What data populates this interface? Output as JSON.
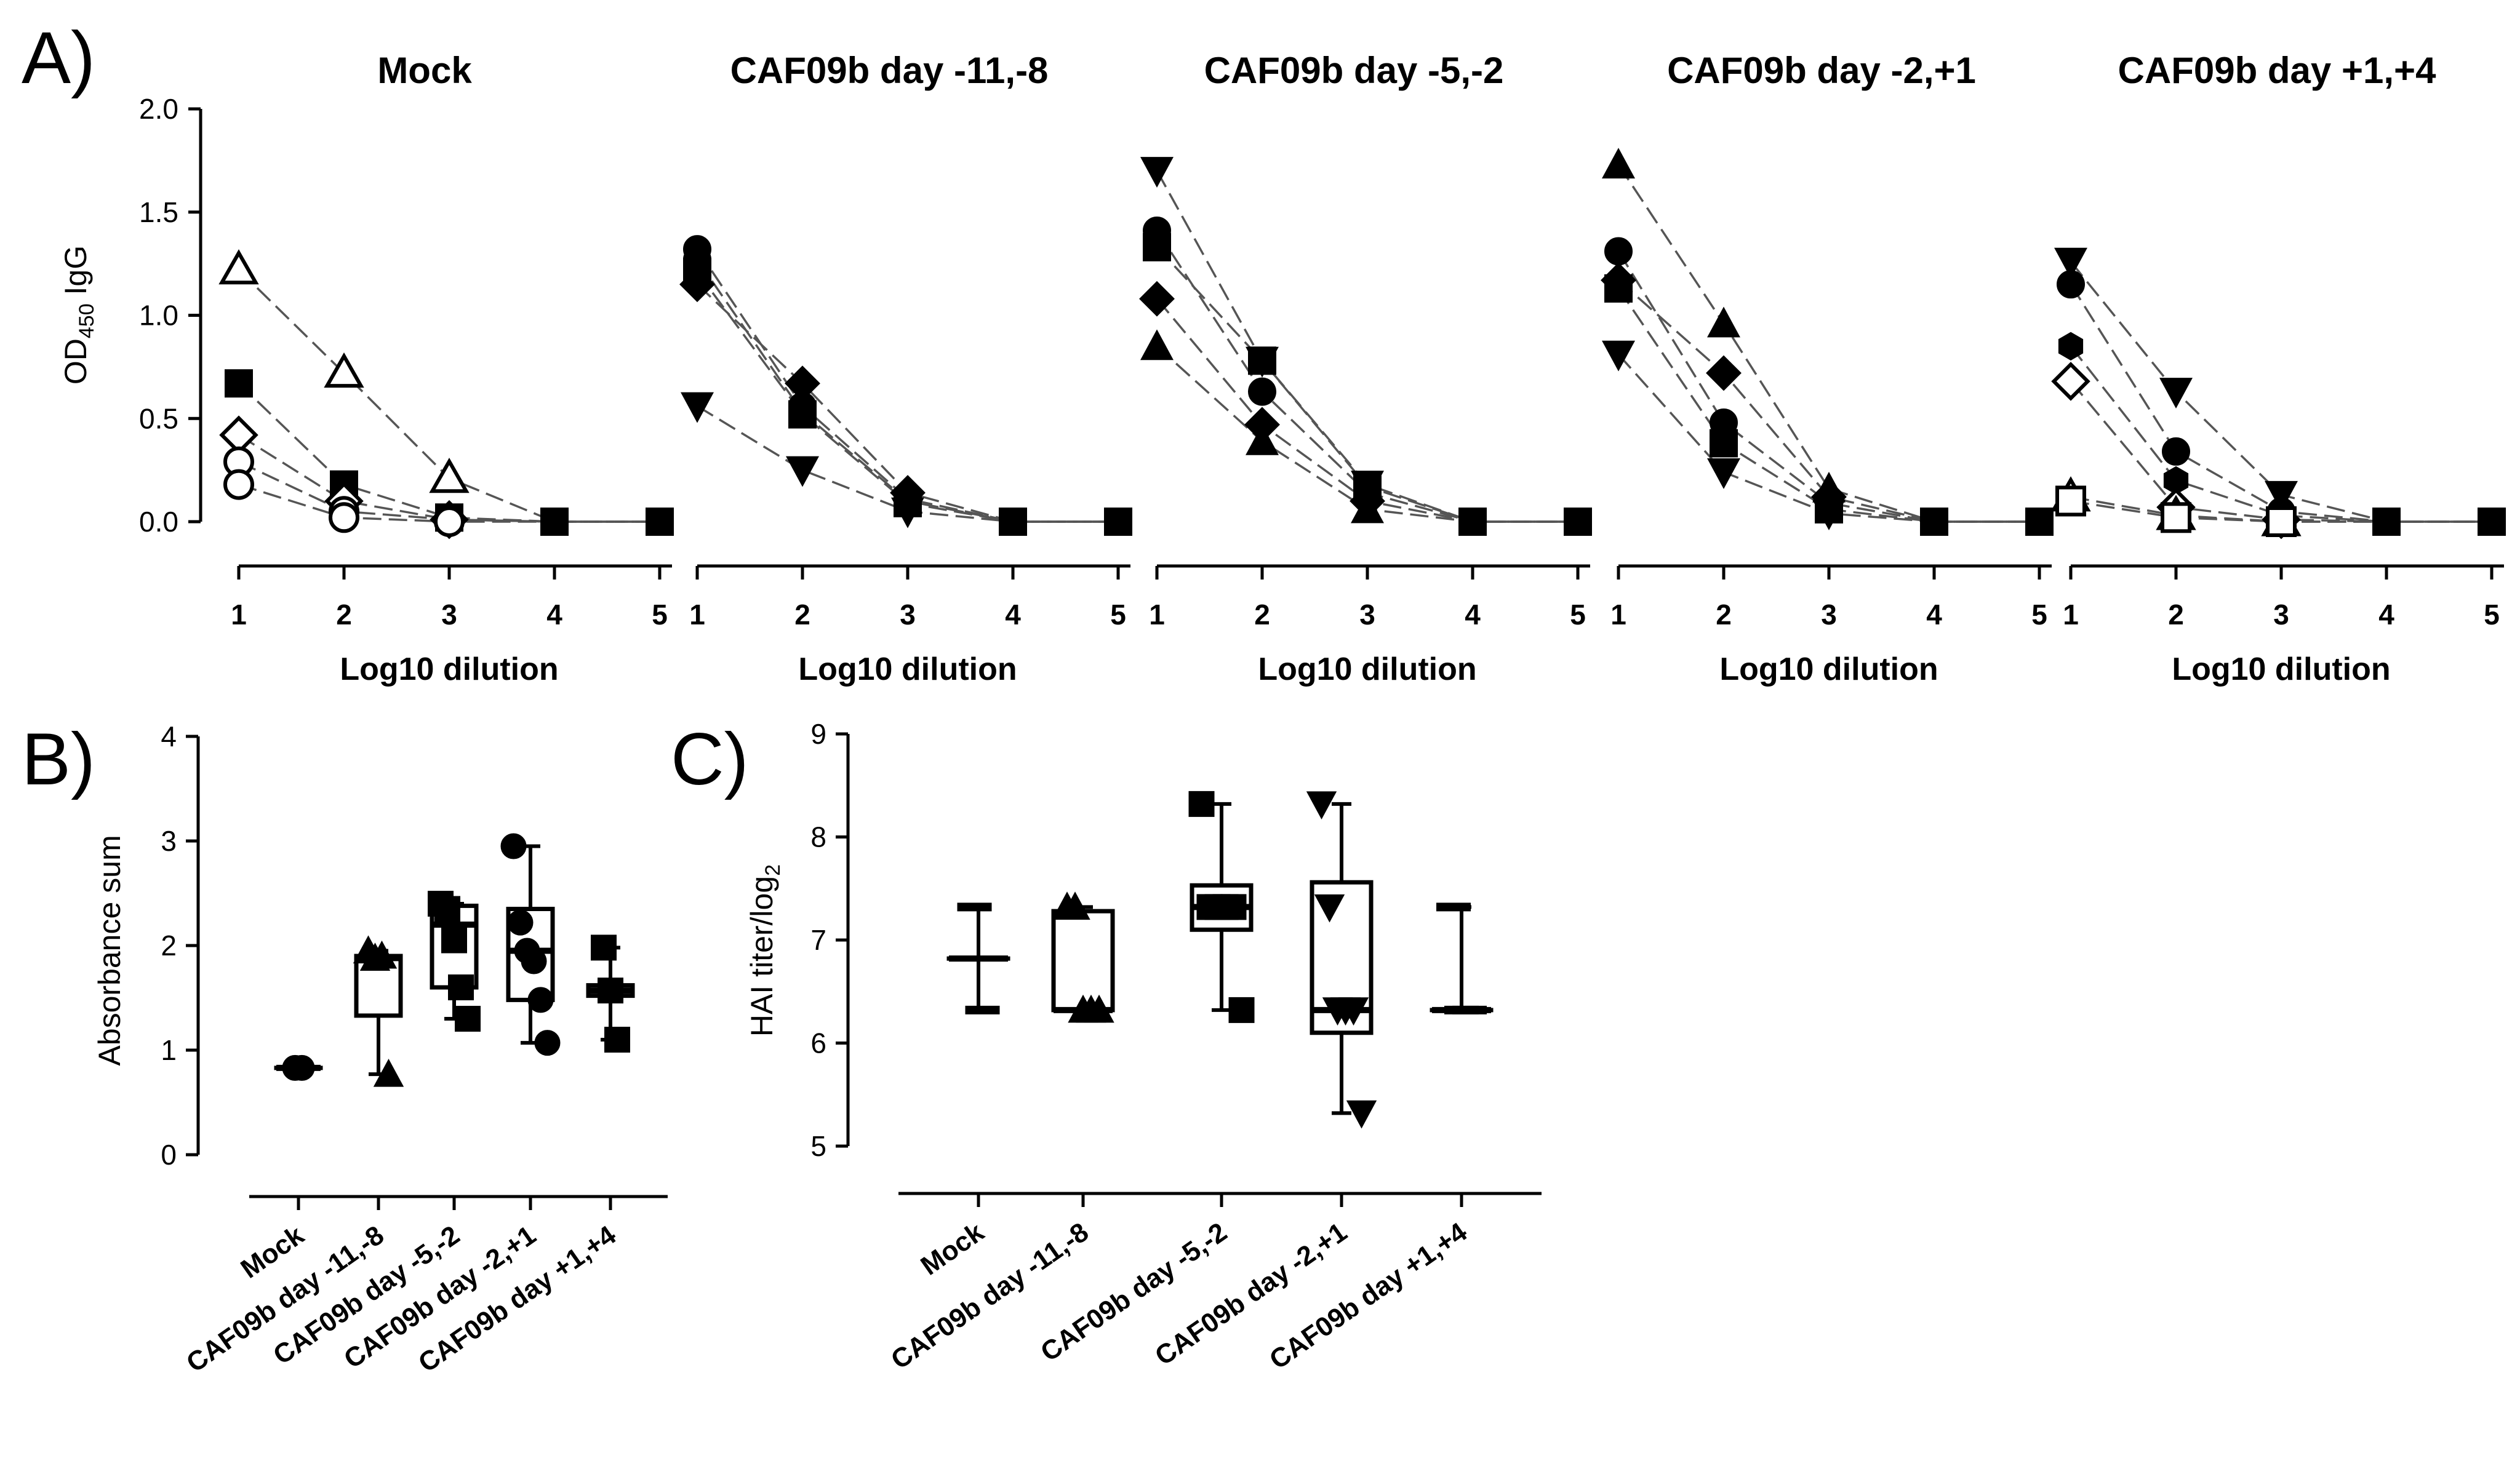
{
  "figure": {
    "panel_labels": [
      "A)",
      "B)",
      "C)"
    ]
  },
  "style": {
    "ink": "#000000",
    "background": "#ffffff"
  },
  "chart_data": [
    {
      "panel": "A",
      "type": "line",
      "ylabel_main": "OD",
      "ylabel_sub": "450",
      "ylabel_tail": " IgG",
      "xlabel": "Log10 dilution",
      "ylim": [
        0,
        2.0
      ],
      "yticks": [
        "0.0",
        "0.5",
        "1.0",
        "1.5",
        "2.0"
      ],
      "xticks": [
        "1",
        "2",
        "3",
        "4",
        "5"
      ],
      "subplots": [
        {
          "title": "Mock",
          "series": [
            {
              "marker": "triangle-open",
              "values": [
                1.22,
                0.72,
                0.21,
                0.0,
                0.0
              ]
            },
            {
              "marker": "square",
              "values": [
                0.67,
                0.18,
                0.02,
                0.0,
                0.0
              ]
            },
            {
              "marker": "diamond-open",
              "values": [
                0.42,
                0.1,
                0.01,
                0.0,
                0.0
              ]
            },
            {
              "marker": "circle-open",
              "values": [
                0.29,
                0.05,
                0.01,
                0.0,
                0.0
              ]
            },
            {
              "marker": "circle-open",
              "values": [
                0.18,
                0.02,
                0.0,
                0.0,
                0.0
              ]
            }
          ]
        },
        {
          "title": "CAF09b day -11,-8",
          "series": [
            {
              "marker": "circle",
              "values": [
                1.32,
                0.56,
                0.11,
                0.0,
                0.0
              ]
            },
            {
              "marker": "circle",
              "values": [
                1.27,
                0.53,
                0.1,
                0.0,
                0.0
              ]
            },
            {
              "marker": "square",
              "values": [
                1.21,
                0.52,
                0.09,
                0.0,
                0.0
              ]
            },
            {
              "marker": "diamond",
              "values": [
                1.15,
                0.67,
                0.14,
                0.0,
                0.0
              ]
            },
            {
              "marker": "triangle-down",
              "values": [
                0.56,
                0.25,
                0.05,
                0.0,
                0.0
              ]
            }
          ]
        },
        {
          "title": "CAF09b day -5,-2",
          "series": [
            {
              "marker": "triangle-down",
              "values": [
                1.7,
                0.78,
                0.18,
                0.0,
                0.0
              ]
            },
            {
              "marker": "circle",
              "values": [
                1.41,
                0.63,
                0.14,
                0.0,
                0.0
              ]
            },
            {
              "marker": "square",
              "values": [
                1.33,
                0.78,
                0.17,
                0.0,
                0.0
              ]
            },
            {
              "marker": "diamond",
              "values": [
                1.08,
                0.47,
                0.1,
                0.0,
                0.0
              ]
            },
            {
              "marker": "triangle-up",
              "values": [
                0.85,
                0.39,
                0.06,
                0.0,
                0.0
              ]
            }
          ]
        },
        {
          "title": "CAF09b day -2,+1",
          "series": [
            {
              "marker": "triangle-up",
              "values": [
                1.73,
                0.96,
                0.16,
                0.0,
                0.0
              ]
            },
            {
              "marker": "circle",
              "values": [
                1.31,
                0.48,
                0.09,
                0.0,
                0.0
              ]
            },
            {
              "marker": "square",
              "values": [
                1.13,
                0.38,
                0.06,
                0.0,
                0.0
              ]
            },
            {
              "marker": "diamond",
              "values": [
                1.17,
                0.72,
                0.12,
                0.0,
                0.0
              ]
            },
            {
              "marker": "triangle-down",
              "values": [
                0.81,
                0.24,
                0.04,
                0.0,
                0.0
              ]
            }
          ]
        },
        {
          "title": "CAF09b day +1,+4",
          "series": [
            {
              "marker": "triangle-down",
              "values": [
                1.26,
                0.63,
                0.13,
                0.0,
                0.0
              ]
            },
            {
              "marker": "circle",
              "values": [
                1.15,
                0.34,
                0.05,
                0.0,
                0.0
              ]
            },
            {
              "marker": "hexagon",
              "values": [
                0.85,
                0.2,
                0.03,
                0.0,
                0.0
              ]
            },
            {
              "marker": "diamond-open",
              "values": [
                0.68,
                0.07,
                0.01,
                0.0,
                0.0
              ]
            },
            {
              "marker": "triangle-open",
              "values": [
                0.12,
                0.03,
                0.0,
                0.0,
                0.0
              ]
            },
            {
              "marker": "square-open",
              "values": [
                0.1,
                0.02,
                0.0,
                0.0,
                0.0
              ]
            }
          ]
        }
      ]
    },
    {
      "panel": "B",
      "type": "box",
      "ylabel": "Absorbance sum",
      "ylim": [
        0,
        4
      ],
      "yticks": [
        "0",
        "1",
        "2",
        "3",
        "4"
      ],
      "categories": [
        "Mock",
        "CAF09b day -11,-8",
        "CAF09b day -5,-2",
        "CAF09b day -2,+1",
        "CAF09b day +1,+4"
      ],
      "boxes": [
        {
          "min": 0.83,
          "q1": 0.83,
          "median": 0.83,
          "q3": 0.83,
          "max": 0.83
        },
        {
          "min": 0.77,
          "q1": 1.33,
          "median": 1.88,
          "q3": 1.9,
          "max": 1.95
        },
        {
          "min": 1.3,
          "q1": 1.6,
          "median": 2.2,
          "q3": 2.38,
          "max": 2.4
        },
        {
          "min": 1.07,
          "q1": 1.48,
          "median": 1.95,
          "q3": 2.35,
          "max": 2.95
        },
        {
          "min": 1.1,
          "q1": 1.52,
          "median": 1.57,
          "q3": 1.62,
          "max": 1.98
        }
      ],
      "points": [
        {
          "marker": "circle",
          "values": [
            0.83,
            0.83
          ]
        },
        {
          "marker": "triangle-up",
          "values": [
            1.95,
            1.88,
            1.9,
            0.77
          ]
        },
        {
          "marker": "square",
          "values": [
            2.4,
            2.35,
            2.05,
            1.6,
            1.3
          ]
        },
        {
          "marker": "circle",
          "values": [
            2.95,
            2.22,
            1.95,
            1.85,
            1.48,
            1.07
          ]
        },
        {
          "marker": "square",
          "values": [
            1.98,
            1.57,
            1.1
          ]
        }
      ]
    },
    {
      "panel": "C",
      "type": "box",
      "ylabel_main": "HAI titer/log",
      "ylabel_sub": "2",
      "ylim": [
        5,
        9
      ],
      "yticks": [
        "5",
        "6",
        "7",
        "8",
        "9"
      ],
      "categories": [
        "Mock",
        "CAF09b day -11,-8",
        "CAF09b day -5,-2",
        "CAF09b day -2,+1",
        "CAF09b day +1,+4"
      ],
      "boxes": [
        {
          "min": 6.32,
          "q1": 6.82,
          "median": 6.82,
          "q3": 6.82,
          "max": 7.32
        },
        {
          "min": 6.32,
          "q1": 6.32,
          "median": 6.32,
          "q3": 7.28,
          "max": 7.32
        },
        {
          "min": 6.32,
          "q1": 7.1,
          "median": 7.32,
          "q3": 7.53,
          "max": 8.32
        },
        {
          "min": 5.32,
          "q1": 6.1,
          "median": 6.32,
          "q3": 7.56,
          "max": 8.32
        },
        {
          "min": 6.32,
          "q1": 6.32,
          "median": 6.32,
          "q3": 6.32,
          "max": 7.32
        }
      ],
      "points": [
        {
          "marker": "hline",
          "values": [
            7.32,
            6.32
          ]
        },
        {
          "marker": "triangle-up",
          "values": [
            7.32,
            7.32,
            6.32,
            6.32,
            6.32
          ]
        },
        {
          "marker": "square",
          "values": [
            8.32,
            7.32,
            7.32,
            7.32,
            7.32,
            6.32
          ]
        },
        {
          "marker": "triangle-down",
          "values": [
            8.32,
            7.32,
            6.32,
            6.32,
            6.32,
            5.32
          ]
        },
        {
          "marker": "hline",
          "values": [
            7.32,
            6.32,
            6.32
          ]
        }
      ]
    }
  ]
}
